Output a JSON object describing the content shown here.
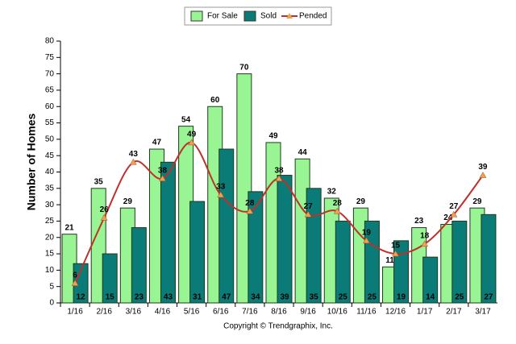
{
  "chart_data": {
    "type": "bar",
    "y_label": "Number of Homes",
    "footer": "Copyright © Trendgraphix, Inc.",
    "categories": [
      "1/16",
      "2/16",
      "3/16",
      "4/16",
      "5/16",
      "6/16",
      "7/16",
      "8/16",
      "9/16",
      "10/16",
      "11/16",
      "12/16",
      "1/17",
      "2/17",
      "3/17"
    ],
    "series": [
      {
        "name": "For Sale",
        "type": "bar",
        "color": "#99f593",
        "values": [
          21,
          35,
          29,
          47,
          54,
          60,
          70,
          49,
          44,
          32,
          29,
          11,
          23,
          24,
          29
        ]
      },
      {
        "name": "Sold",
        "type": "bar",
        "color": "#0b7b78",
        "values": [
          12,
          15,
          23,
          43,
          31,
          47,
          34,
          39,
          35,
          25,
          25,
          19,
          14,
          25,
          27
        ]
      },
      {
        "name": "Pended",
        "type": "line",
        "color": "#c0302a",
        "marker_color": "#f0a050",
        "values": [
          6,
          26,
          43,
          38,
          49,
          33,
          28,
          38,
          27,
          28,
          19,
          15,
          18,
          27,
          39
        ]
      }
    ],
    "ylim": [
      0,
      80
    ],
    "yticks": [
      0,
      5,
      10,
      15,
      20,
      25,
      30,
      35,
      40,
      45,
      50,
      55,
      60,
      65,
      70,
      75,
      80
    ],
    "grid": false
  }
}
